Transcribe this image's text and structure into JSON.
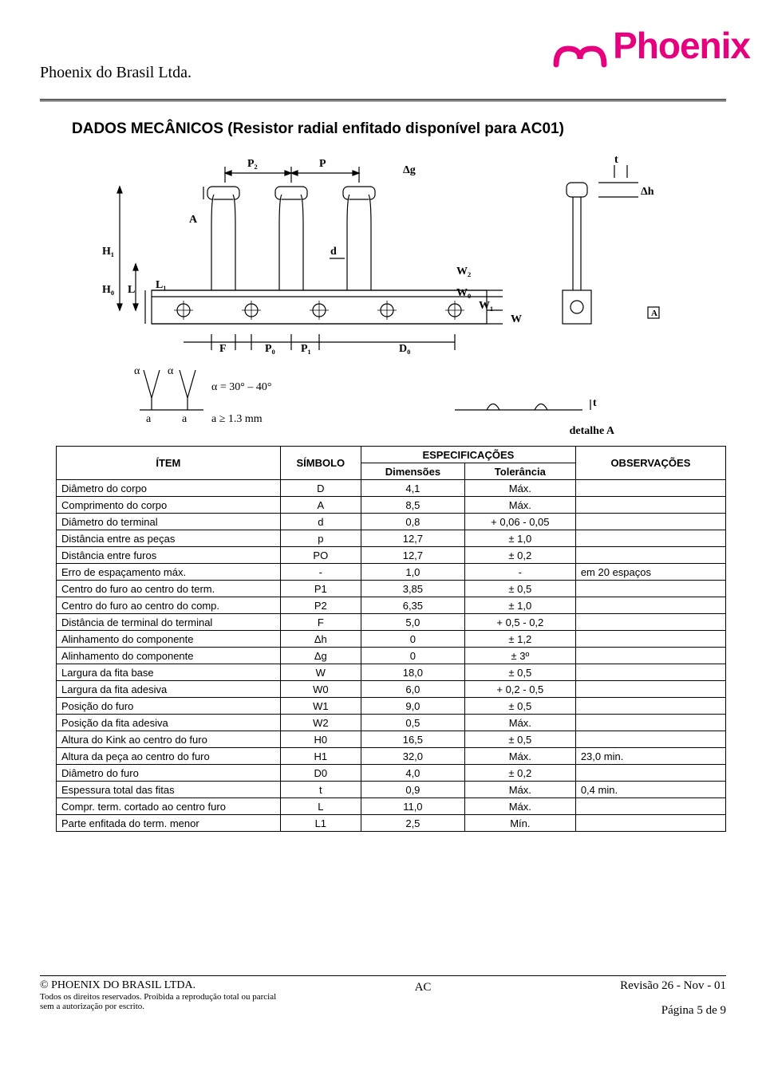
{
  "header": {
    "company": "Phoenix do Brasil Ltda.",
    "logo_text": "Phoenix",
    "logo_color": "#e6007e"
  },
  "title": "DADOS MECÂNICOS (Resistor radial enfitado disponível para AC01)",
  "diagram": {
    "labels_top": [
      "P₂",
      "P",
      "Δg"
    ],
    "labels_left": [
      "A",
      "H₁",
      "H₀",
      "L",
      "L₁"
    ],
    "labels_mid": [
      "d",
      "W₂",
      "W₀",
      "W₁",
      "W"
    ],
    "labels_right": [
      "t",
      "Δh",
      "A"
    ],
    "labels_bottom": [
      "α",
      "α",
      "F",
      "P₀",
      "P₁",
      "D₀"
    ],
    "alpha_note": "α = 30° – 40°",
    "a_note": [
      "a",
      "a",
      "a ≥ 1.3 mm"
    ],
    "detalhe": "detalhe A"
  },
  "table": {
    "headers": {
      "item": "ÍTEM",
      "simbolo": "SÍMBOLO",
      "espec": "ESPECIFICAÇÕES",
      "dim": "Dimensões",
      "tol": "Tolerância",
      "obs": "OBSERVAÇÕES"
    },
    "rows": [
      {
        "item": "Diâmetro do corpo",
        "sym": "D",
        "dim": "4,1",
        "tol": "Máx.",
        "obs": ""
      },
      {
        "item": "Comprimento do corpo",
        "sym": "A",
        "dim": "8,5",
        "tol": "Máx.",
        "obs": ""
      },
      {
        "item": "Diâmetro do terminal",
        "sym": "d",
        "dim": "0,8",
        "tol": "+ 0,06  -  0,05",
        "obs": ""
      },
      {
        "item": "Distância entre as peças",
        "sym": "p",
        "dim": "12,7",
        "tol": "± 1,0",
        "obs": ""
      },
      {
        "item": "Distância entre furos",
        "sym": "PO",
        "dim": "12,7",
        "tol": "± 0,2",
        "obs": ""
      },
      {
        "item": "Erro de espaçamento máx.",
        "sym": "-",
        "dim": "1,0",
        "tol": "-",
        "obs": "em 20 espaços"
      },
      {
        "item": "Centro do furo ao centro do  term.",
        "sym": "P1",
        "dim": "3,85",
        "tol": "± 0,5",
        "obs": ""
      },
      {
        "item": "Centro do furo ao centro do  comp.",
        "sym": "P2",
        "dim": "6,35",
        "tol": "± 1,0",
        "obs": ""
      },
      {
        "item": "Distância de terminal do terminal",
        "sym": "F",
        "dim": "5,0",
        "tol": "+ 0,5  -  0,2",
        "obs": ""
      },
      {
        "item": "Alinhamento do componente",
        "sym": "Δh",
        "dim": "0",
        "tol": "± 1,2",
        "obs": ""
      },
      {
        "item": "Alinhamento do componente",
        "sym": "Δg",
        "dim": "0",
        "tol": "±  3º",
        "obs": ""
      },
      {
        "item": "Largura da fita base",
        "sym": "W",
        "dim": "18,0",
        "tol": "± 0,5",
        "obs": ""
      },
      {
        "item": "Largura da fita adesiva",
        "sym": "W0",
        "dim": "6,0",
        "tol": "+ 0,2  -  0,5",
        "obs": ""
      },
      {
        "item": "Posição do furo",
        "sym": "W1",
        "dim": "9,0",
        "tol": "± 0,5",
        "obs": ""
      },
      {
        "item": "Posição da fita adesiva",
        "sym": "W2",
        "dim": "0,5",
        "tol": "Máx.",
        "obs": ""
      },
      {
        "item": "Altura do Kink ao centro do  furo",
        "sym": "H0",
        "dim": "16,5",
        "tol": "± 0,5",
        "obs": ""
      },
      {
        "item": "Altura da peça ao centro do  furo",
        "sym": "H1",
        "dim": "32,0",
        "tol": "Máx.",
        "obs": "23,0 min."
      },
      {
        "item": "Diâmetro do furo",
        "sym": "D0",
        "dim": "4,0",
        "tol": "± 0,2",
        "obs": ""
      },
      {
        "item": "Espessura total das fitas",
        "sym": "t",
        "dim": "0,9",
        "tol": "Máx.",
        "obs": "0,4 min."
      },
      {
        "item": "Compr. term. cortado ao centro furo",
        "sym": "L",
        "dim": "11,0",
        "tol": "Máx.",
        "obs": ""
      },
      {
        "item": "Parte enfitada do term.   menor",
        "sym": "L1",
        "dim": "2,5",
        "tol": "Mín.",
        "obs": ""
      }
    ]
  },
  "footer": {
    "copyright": "© PHOENIX DO BRASIL  LTDA.",
    "rights": "Todos os direitos reservados. Proibida a reprodução total ou parcial sem a autorização por escrito.",
    "center": "AC",
    "revision": "Revisão  26 - Nov - 01",
    "page": "Página 5 de 9"
  }
}
